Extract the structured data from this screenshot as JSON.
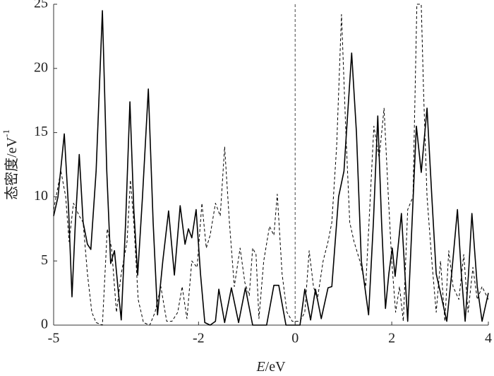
{
  "chart_data": {
    "type": "line",
    "y_label": "态密度/eV",
    "y_label_sup": "-1",
    "x_label_var": "E",
    "x_label": "/eV",
    "xlim": [
      -5,
      4
    ],
    "xticks": [
      -5,
      -2,
      0,
      2,
      4
    ],
    "ylim": [
      0,
      25
    ],
    "yticks": [
      0,
      5,
      10,
      15,
      20,
      25
    ],
    "vline": 0,
    "vline_style": "dashed",
    "series": [
      {
        "color": "#000000",
        "line_style": "solid",
        "x": [
          -5.0,
          -4.91,
          -4.78,
          -4.69,
          -4.62,
          -4.55,
          -4.47,
          -4.39,
          -4.3,
          -4.23,
          -4.12,
          -3.99,
          -3.9,
          -3.82,
          -3.74,
          -3.67,
          -3.6,
          -3.51,
          -3.42,
          -3.34,
          -3.26,
          -3.16,
          -3.04,
          -2.94,
          -2.85,
          -2.74,
          -2.62,
          -2.5,
          -2.38,
          -2.28,
          -2.21,
          -2.14,
          -2.05,
          -1.96,
          -1.87,
          -1.76,
          -1.65,
          -1.58,
          -1.46,
          -1.32,
          -1.17,
          -1.03,
          -0.88,
          -0.59,
          -0.44,
          -0.34,
          -0.19,
          0.1,
          0.2,
          0.32,
          0.42,
          0.54,
          0.68,
          0.76,
          0.9,
          1.01,
          1.08,
          1.17,
          1.27,
          1.37,
          1.52,
          1.62,
          1.71,
          1.79,
          1.87,
          1.94,
          2.01,
          2.07,
          2.2,
          2.33,
          2.42,
          2.51,
          2.61,
          2.73,
          2.83,
          2.92,
          2.98,
          3.14,
          3.24,
          3.36,
          3.44,
          3.52,
          3.59,
          3.66,
          3.77,
          3.87,
          4.0
        ],
        "values": [
          8.5,
          10,
          14.9,
          9,
          2.2,
          8,
          13.3,
          8,
          6.3,
          5.9,
          12,
          24.5,
          12,
          4.8,
          5.8,
          3,
          0.4,
          8,
          17.4,
          9,
          3.9,
          10,
          18.4,
          8,
          0.8,
          5,
          8.9,
          3.9,
          9.3,
          6.3,
          7.5,
          6.8,
          9.0,
          4,
          0.2,
          0,
          0.3,
          2.8,
          0.2,
          2.9,
          0.2,
          2.9,
          0,
          0,
          3.1,
          3.1,
          0,
          0,
          2.8,
          0.4,
          2.8,
          0.5,
          2.9,
          3,
          10,
          12,
          16,
          21.2,
          15,
          5,
          0.8,
          8,
          16.3,
          8,
          1.3,
          4,
          6.0,
          3.8,
          8.7,
          0.3,
          8,
          15.5,
          11.9,
          16.9,
          10,
          4,
          3.0,
          0.3,
          4,
          9.0,
          4,
          0.3,
          4,
          8.7,
          3,
          0.3,
          2.5
        ]
      },
      {
        "color": "#000000",
        "line_style": "dashed",
        "x": [
          -5.0,
          -4.85,
          -4.75,
          -4.68,
          -4.59,
          -4.47,
          -4.39,
          -4.3,
          -4.21,
          -4.12,
          -3.99,
          -3.89,
          -3.8,
          -3.7,
          -3.6,
          -3.48,
          -3.41,
          -3.34,
          -3.25,
          -3.14,
          -3.01,
          -2.9,
          -2.78,
          -2.66,
          -2.55,
          -2.43,
          -2.34,
          -2.24,
          -2.14,
          -2.03,
          -1.93,
          -1.84,
          -1.76,
          -1.65,
          -1.55,
          -1.46,
          -1.36,
          -1.26,
          -1.14,
          -1.04,
          -0.95,
          -0.88,
          -0.81,
          -0.75,
          -0.65,
          -0.53,
          -0.44,
          -0.37,
          -0.27,
          -0.17,
          -0.06,
          0.1,
          0.2,
          0.29,
          0.38,
          0.46,
          0.58,
          0.68,
          0.76,
          0.86,
          0.96,
          1.05,
          1.13,
          1.22,
          1.34,
          1.46,
          1.53,
          1.63,
          1.74,
          1.84,
          1.93,
          2.0,
          2.08,
          2.16,
          2.24,
          2.33,
          2.44,
          2.52,
          2.61,
          2.66,
          2.73,
          2.83,
          2.92,
          3.01,
          3.1,
          3.18,
          3.27,
          3.39,
          3.49,
          3.58,
          3.68,
          3.77,
          3.87,
          4.0
        ],
        "values": [
          9,
          12,
          10,
          6.5,
          9.5,
          8.5,
          8,
          4,
          1,
          0.2,
          0,
          7.5,
          6,
          1,
          4,
          6.5,
          11.3,
          8,
          2,
          0.2,
          0,
          1,
          3,
          0.3,
          0.3,
          1,
          3,
          0.5,
          5,
          4.5,
          9.5,
          6,
          7,
          9.5,
          8.5,
          13.9,
          8,
          3,
          6,
          3.3,
          2.3,
          6,
          5.5,
          0.5,
          5,
          7.7,
          7,
          10.2,
          4,
          1,
          0.3,
          0.3,
          1,
          5.8,
          3,
          2,
          5,
          6.5,
          8,
          14,
          24.2,
          15,
          8,
          6.5,
          5,
          3,
          8,
          15.5,
          13,
          16.9,
          10,
          5,
          1,
          3,
          0.3,
          9,
          10,
          25,
          25,
          18,
          10,
          5,
          1,
          5,
          0.3,
          5.8,
          3,
          2,
          5.5,
          1,
          4.5,
          2,
          3,
          2
        ]
      }
    ]
  }
}
